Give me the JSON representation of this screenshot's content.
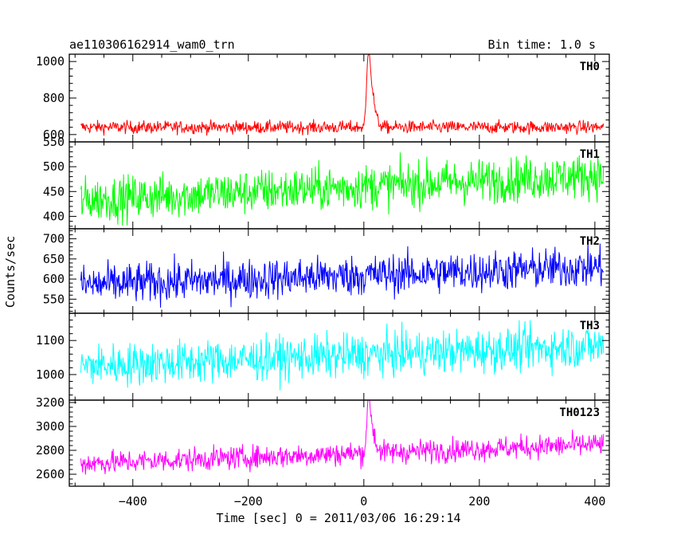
{
  "header": {
    "title": "ae110306162914_wam0_trn",
    "bin_time": "Bin time: 1.0 s"
  },
  "chart_data": {
    "type": "line",
    "title": "ae110306162914_wam0_trn",
    "xlabel": "Time [sec] 0 = 2011/03/06 16:29:14",
    "ylabel": "Counts/sec",
    "xlim": [
      -510,
      425
    ],
    "x_range": [
      -490,
      415
    ],
    "x_ticks": [
      -400,
      -200,
      0,
      200,
      400
    ],
    "x_tick_labels": [
      "−400",
      "−200",
      "0",
      "200",
      "400"
    ],
    "grid": false,
    "panels": [
      {
        "label": "TH0",
        "color": "#ff0000",
        "ylim": [
          560,
          1040
        ],
        "ticks": [
          600,
          800,
          1000
        ],
        "base_start": 640,
        "base_end": 640,
        "noise": 25,
        "floor": 565,
        "peaks": [
          [
            8,
            390,
            3
          ],
          [
            14,
            160,
            4
          ],
          [
            20,
            40,
            6
          ]
        ]
      },
      {
        "label": "TH1",
        "color": "#00ff00",
        "ylim": [
          375,
          550
        ],
        "ticks": [
          400,
          450,
          500,
          550
        ],
        "base_start": 433,
        "base_end": 483,
        "noise": 32,
        "floor": 378,
        "peaks": []
      },
      {
        "label": "TH2",
        "color": "#0000ff",
        "ylim": [
          515,
          725
        ],
        "ticks": [
          550,
          600,
          650,
          700
        ],
        "base_start": 585,
        "base_end": 630,
        "noise": 36,
        "floor": 518,
        "peaks": []
      },
      {
        "label": "TH3",
        "color": "#00ffff",
        "ylim": [
          925,
          1180
        ],
        "ticks": [
          1000,
          1100
        ],
        "base_start": 1025,
        "base_end": 1085,
        "noise": 45,
        "floor": 928,
        "peaks": []
      },
      {
        "label": "TH0123",
        "color": "#ff00ff",
        "ylim": [
          2500,
          3220
        ],
        "ticks": [
          2600,
          2800,
          3000,
          3200
        ],
        "base_start": 2690,
        "base_end": 2850,
        "noise": 70,
        "floor": 2505,
        "peaks": [
          [
            8,
            420,
            3
          ],
          [
            14,
            170,
            4
          ],
          [
            20,
            50,
            6
          ]
        ]
      }
    ]
  }
}
